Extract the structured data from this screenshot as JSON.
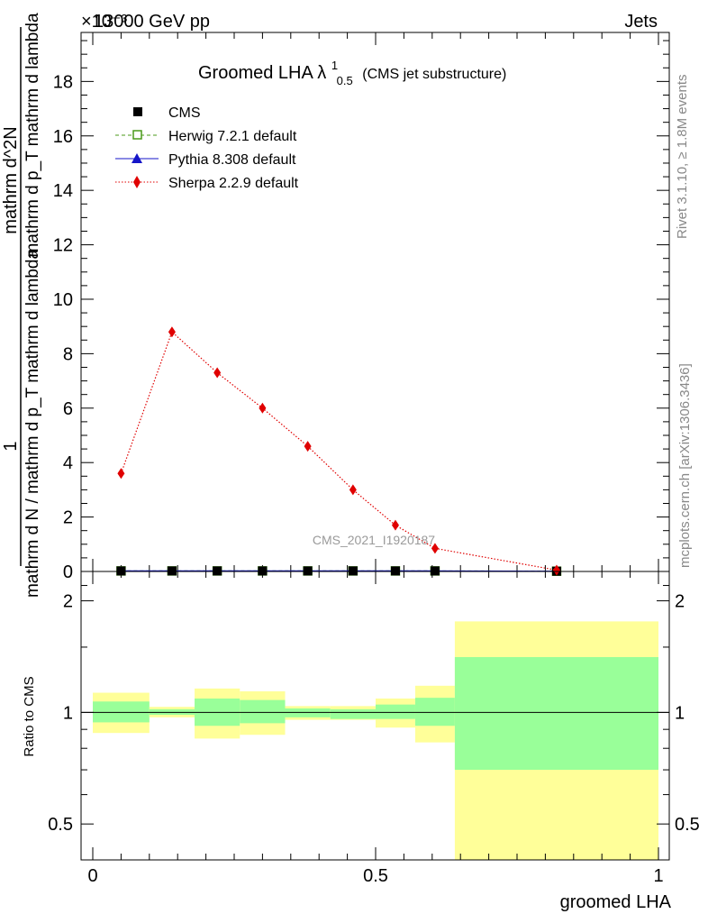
{
  "header": {
    "left": "13000 GeV pp",
    "right": "Jets",
    "exponent": "×10⁻³"
  },
  "side_text": {
    "rivet": "Rivet 3.1.10, ≥ 1.8M events",
    "mcplots": "mcplots.cern.ch [arXiv:1306.3436]"
  },
  "watermark": "CMS_2021_I1920187",
  "colors": {
    "herwig": "#4a9a1a",
    "pythia": "#1515c8",
    "sherpa": "#e00000",
    "band_outer": "#ffff99",
    "band_inner": "#99ff99"
  },
  "chart_data": [
    {
      "type": "line",
      "title": "Groomed LHA λ",
      "title_sup": "1",
      "title_sub": "0.5",
      "title_note": "(CMS jet substructure)",
      "ylabel_lines": [
        "1",
        "mathrm d N / mathrm d p_T mathrm d lambda",
        "mathrm d^2N",
        "mathrm d p_T mathrm d lambda"
      ],
      "y_exponent": "×10⁻³",
      "xlim": [
        0,
        1
      ],
      "ylim": [
        0,
        19.8
      ],
      "yticks": [
        0,
        2,
        4,
        6,
        8,
        10,
        12,
        14,
        16,
        18
      ],
      "legend_position": "top-left",
      "series": [
        {
          "name": "CMS",
          "marker": "square-filled",
          "x": [
            0.05,
            0.14,
            0.22,
            0.3,
            0.38,
            0.46,
            0.535,
            0.605,
            0.82
          ],
          "y": [
            0.02,
            0.02,
            0.02,
            0.02,
            0.02,
            0.02,
            0.02,
            0.02,
            0.01
          ]
        },
        {
          "name": "Herwig 7.2.1 default",
          "marker": "square-open",
          "line": "dashed",
          "x": [
            0.05,
            0.14,
            0.22,
            0.3,
            0.38,
            0.46,
            0.535,
            0.605,
            0.82
          ],
          "y": [
            0.02,
            0.02,
            0.02,
            0.02,
            0.02,
            0.02,
            0.02,
            0.02,
            0.01
          ]
        },
        {
          "name": "Pythia 8.308 default",
          "marker": "triangle",
          "line": "solid",
          "x": [
            0.05,
            0.14,
            0.22,
            0.3,
            0.38,
            0.46,
            0.535,
            0.605,
            0.82
          ],
          "y": [
            0.02,
            0.02,
            0.02,
            0.02,
            0.02,
            0.02,
            0.02,
            0.02,
            0.01
          ]
        },
        {
          "name": "Sherpa 2.2.9 default",
          "marker": "diamond",
          "line": "dotted",
          "x": [
            0.05,
            0.14,
            0.22,
            0.3,
            0.38,
            0.46,
            0.535,
            0.605,
            0.82
          ],
          "y": [
            3.6,
            8.8,
            7.3,
            6.0,
            4.6,
            3.0,
            1.7,
            0.85,
            0.05
          ]
        }
      ]
    },
    {
      "type": "area",
      "ylabel": "Ratio to CMS",
      "xlabel": "groomed LHA",
      "xlim": [
        0,
        1
      ],
      "ylim": [
        0.4,
        2.4
      ],
      "yscale": "log",
      "yticks": [
        0.5,
        1,
        2
      ],
      "ytick_labels": [
        "0.5",
        "1",
        "2"
      ],
      "xticks": [
        0,
        0.5,
        1
      ],
      "xtick_labels": [
        "0",
        "0.5",
        "1"
      ],
      "reference": 1,
      "bins": [
        {
          "lo": 0.0,
          "hi": 0.1,
          "inner": [
            0.94,
            1.07
          ],
          "outer": [
            0.88,
            1.13
          ]
        },
        {
          "lo": 0.1,
          "hi": 0.18,
          "inner": [
            0.985,
            1.02
          ],
          "outer": [
            0.97,
            1.035
          ]
        },
        {
          "lo": 0.18,
          "hi": 0.26,
          "inner": [
            0.92,
            1.09
          ],
          "outer": [
            0.85,
            1.16
          ]
        },
        {
          "lo": 0.26,
          "hi": 0.34,
          "inner": [
            0.935,
            1.08
          ],
          "outer": [
            0.87,
            1.14
          ]
        },
        {
          "lo": 0.34,
          "hi": 0.42,
          "inner": [
            0.97,
            1.025
          ],
          "outer": [
            0.955,
            1.04
          ]
        },
        {
          "lo": 0.42,
          "hi": 0.5,
          "inner": [
            0.96,
            1.02
          ],
          "outer": [
            0.955,
            1.04
          ]
        },
        {
          "lo": 0.5,
          "hi": 0.57,
          "inner": [
            0.96,
            1.05
          ],
          "outer": [
            0.91,
            1.09
          ]
        },
        {
          "lo": 0.57,
          "hi": 0.64,
          "inner": [
            0.92,
            1.095
          ],
          "outer": [
            0.83,
            1.18
          ]
        },
        {
          "lo": 0.64,
          "hi": 1.0,
          "inner": [
            0.7,
            1.41
          ],
          "outer": [
            0.4,
            1.76
          ]
        }
      ]
    }
  ]
}
